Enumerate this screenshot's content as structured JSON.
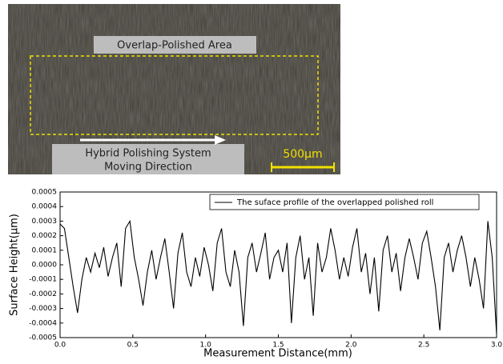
{
  "image_annotations": {
    "area_label": "Overlap-Polished Area",
    "direction_label": [
      "Hybrid Polishing System",
      "Moving Direction"
    ],
    "scale_bar": "500μm"
  },
  "chart_data": {
    "type": "line",
    "ylabel": "Surface Height(μm)",
    "xlabel": "Measurement Distance(mm)",
    "xlim": [
      0,
      3
    ],
    "ylim": [
      -0.0005,
      0.0005
    ],
    "xticks": [
      {
        "value": 0,
        "label": "0.0"
      },
      0.5,
      {
        "value": 1,
        "label": "1.0"
      },
      1.5,
      {
        "value": 2,
        "label": "2.0"
      },
      2.5,
      {
        "value": 3,
        "label": "3.0"
      }
    ],
    "yticks": [
      0.0005,
      0.0004,
      0.0003,
      0.0002,
      0.0001,
      {
        "value": 0,
        "label": "0.0000"
      },
      -0.0001,
      -0.0002,
      -0.0003,
      -0.0004,
      -0.0005
    ],
    "legend": "upper right",
    "series": [
      {
        "name": "The suface profile of the overlapped polished roll",
        "color": "#000000",
        "x": [
          0,
          0.03,
          0.06,
          0.09,
          0.12,
          0.15,
          0.18,
          0.21,
          0.24,
          0.27,
          0.3,
          0.33,
          0.36,
          0.39,
          0.42,
          0.45,
          0.48,
          0.51,
          0.54,
          0.57,
          0.6,
          0.63,
          0.66,
          0.69,
          0.72,
          0.75,
          0.78,
          0.81,
          0.84,
          0.87,
          0.9,
          0.93,
          0.96,
          0.99,
          1.02,
          1.05,
          1.08,
          1.11,
          1.14,
          1.17,
          1.2,
          1.23,
          1.26,
          1.29,
          1.32,
          1.35,
          1.38,
          1.41,
          1.44,
          1.47,
          1.5,
          1.53,
          1.56,
          1.59,
          1.62,
          1.65,
          1.68,
          1.71,
          1.74,
          1.77,
          1.8,
          1.83,
          1.86,
          1.89,
          1.92,
          1.95,
          1.98,
          2.01,
          2.04,
          2.07,
          2.1,
          2.13,
          2.16,
          2.19,
          2.22,
          2.25,
          2.28,
          2.31,
          2.34,
          2.37,
          2.4,
          2.43,
          2.46,
          2.49,
          2.52,
          2.55,
          2.58,
          2.61,
          2.64,
          2.67,
          2.7,
          2.73,
          2.76,
          2.79,
          2.82,
          2.85,
          2.88,
          2.91,
          2.94,
          2.97,
          3
        ],
        "values": [
          0.00028,
          0.00025,
          5e-05,
          -0.00015,
          -0.00033,
          -0.0001,
          5e-05,
          -5e-05,
          8e-05,
          -2e-05,
          0.00012,
          -8e-05,
          5e-05,
          0.00015,
          -0.00015,
          0.00025,
          0.0003,
          5e-05,
          -0.0001,
          -0.00028,
          -5e-05,
          0.0001,
          -0.0001,
          5e-05,
          0.00018,
          -5e-05,
          -0.0003,
          8e-05,
          0.00022,
          -5e-05,
          -0.00015,
          5e-05,
          -8e-05,
          0.00012,
          0,
          -0.00018,
          0.00015,
          0.00025,
          -5e-05,
          -0.00015,
          0.0001,
          -5e-05,
          -0.00042,
          5e-05,
          0.00015,
          -5e-05,
          8e-05,
          0.00022,
          -0.0001,
          5e-05,
          0.0001,
          -5e-05,
          0.00015,
          -0.0004,
          5e-05,
          0.0002,
          -0.0001,
          5e-05,
          -0.00035,
          0.00015,
          -5e-05,
          5e-05,
          0.00025,
          0.0001,
          -0.0001,
          5e-05,
          -8e-05,
          0.00012,
          0.00025,
          -5e-05,
          8e-05,
          -0.0002,
          5e-05,
          -0.00032,
          0.0001,
          0.0002,
          -5e-05,
          8e-05,
          -0.00018,
          5e-05,
          0.00018,
          5e-05,
          -0.0001,
          0.00015,
          0.00023,
          5e-05,
          -0.00015,
          -0.00045,
          5e-05,
          0.00015,
          -5e-05,
          0.0001,
          0.0002,
          5e-05,
          -0.00015,
          5e-05,
          -0.0001,
          -0.0003,
          0.0003,
          5e-05,
          -0.00048
        ]
      }
    ]
  }
}
